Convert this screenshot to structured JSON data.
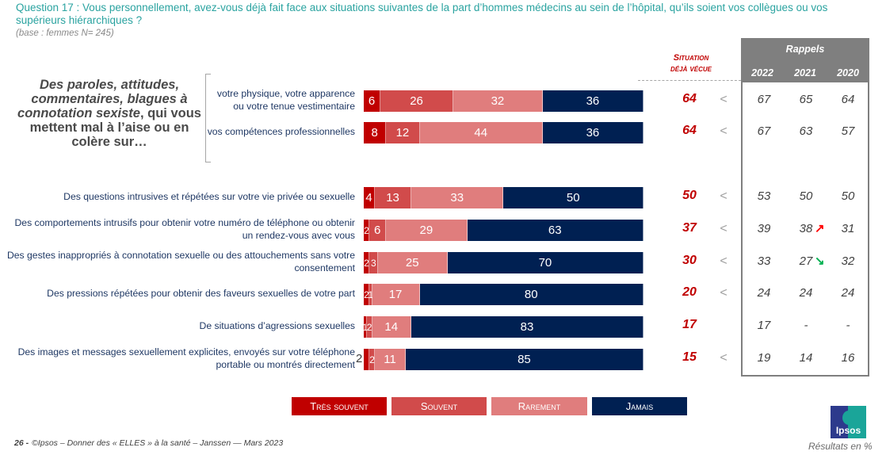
{
  "header": {
    "question": "Question 17 : Vous personnellement, avez-vous déjà fait face aux situations suivantes de la part d’hommes médecins au sein de l’hôpital, qu’ils soient vos collègues ou vos supérieurs hiérarchiques ?",
    "base": "(base : femmes N= 245)"
  },
  "group": {
    "title_italic": "Des paroles, attitudes, commentaires, blagues à connotation sexiste",
    "title_rest": ", qui vous mettent mal à l’aise ou en colère sur…"
  },
  "columns": {
    "situation_header_1": "Situation",
    "situation_header_2": "déjà vécue",
    "rappels_title": "Rappels",
    "years": [
      "2022",
      "2021",
      "2020"
    ]
  },
  "colors": {
    "tres_souvent": "#c00000",
    "souvent": "#d14b4b",
    "rarement": "#e07d7d",
    "jamais": "#002052",
    "situation": "#c00000",
    "rappels_header": "#7f7f7f",
    "question": "#2aa3a0",
    "arrow_up": "#ff0000",
    "arrow_down": "#00b050"
  },
  "chart_data": {
    "type": "bar",
    "orientation": "horizontal-stacked-100",
    "title": "Question 17 : Vous personnellement, avez-vous déjà fait face aux situations suivantes de la part d’hommes médecins au sein de l’hôpital, qu’ils soient vos collègues ou vos supérieurs hiérarchiques ?",
    "unit": "%",
    "legend": [
      "Très souvent",
      "Souvent",
      "Rarement",
      "Jamais"
    ],
    "legend_position": "bottom",
    "categories": [
      "votre physique, votre apparence ou votre tenue vestimentaire",
      "vos compétences professionnelles",
      "Des questions intrusives et répétées sur votre vie privée ou sexuelle",
      "Des comportements intrusifs pour obtenir votre numéro de téléphone ou obtenir un rendez-vous avec vous",
      "Des gestes inappropriés à connotation sexuelle ou des attouchements sans votre consentement",
      "Des pressions répétées pour obtenir des faveurs sexuelles de votre part",
      "De situations d’agressions sexuelles",
      "Des images et messages sexuellement explicites, envoyés sur votre téléphone portable ou montrés directement"
    ],
    "series": [
      {
        "name": "Très souvent",
        "values": [
          6,
          8,
          4,
          2,
          2,
          2,
          1,
          2
        ]
      },
      {
        "name": "Souvent",
        "values": [
          26,
          12,
          13,
          6,
          3,
          1,
          2,
          2
        ]
      },
      {
        "name": "Rarement",
        "values": [
          32,
          44,
          33,
          29,
          25,
          17,
          14,
          11
        ]
      },
      {
        "name": "Jamais",
        "values": [
          36,
          36,
          50,
          63,
          70,
          80,
          83,
          85
        ]
      }
    ],
    "situation_deja_vecue": [
      64,
      64,
      50,
      37,
      30,
      20,
      17,
      15
    ],
    "comparison_sign": [
      "<",
      "<",
      "<",
      "<",
      "<",
      "<",
      "",
      "<"
    ],
    "rappels": {
      "2022": [
        "67",
        "67",
        "53",
        "39",
        "33",
        "24",
        "17",
        "19"
      ],
      "2021": [
        "65",
        "63",
        "50",
        "38",
        "27",
        "24",
        "-",
        "14"
      ],
      "2020": [
        "64",
        "57",
        "50",
        "31",
        "32",
        "24",
        "-",
        "16"
      ]
    },
    "rappels_trend_2021": [
      "",
      "",
      "",
      "up",
      "down",
      "",
      "",
      ""
    ]
  },
  "rows": [
    {
      "label": "votre physique, votre apparence\nou votre tenue vestimentaire",
      "seg": [
        "6",
        "26",
        "32",
        "36"
      ],
      "sit": "64",
      "lt": "<",
      "r22": "67",
      "r21": "65",
      "r20": "64"
    },
    {
      "label": "vos compétences professionnelles",
      "seg": [
        "8",
        "12",
        "44",
        "36"
      ],
      "sit": "64",
      "lt": "<",
      "r22": "67",
      "r21": "63",
      "r20": "57"
    },
    {
      "label": "Des questions intrusives et répétées sur votre vie privée ou sexuelle",
      "seg": [
        "4",
        "13",
        "33",
        "50"
      ],
      "sit": "50",
      "lt": "<",
      "r22": "53",
      "r21": "50",
      "r20": "50"
    },
    {
      "label": "Des comportements intrusifs pour obtenir votre numéro de téléphone ou obtenir\nun rendez-vous avec vous",
      "seg": [
        "2",
        "6",
        "29",
        "63"
      ],
      "sit": "37",
      "lt": "<",
      "r22": "39",
      "r21": "38",
      "r20": "31",
      "arrow": "↗"
    },
    {
      "label": "Des gestes inappropriés à connotation sexuelle ou des attouchements sans votre\nconsentement",
      "seg": [
        "2",
        "3",
        "25",
        "70"
      ],
      "sit": "30",
      "lt": "<",
      "r22": "33",
      "r21": "27",
      "r20": "32",
      "arrow": "↘"
    },
    {
      "label": "Des pressions répétées pour obtenir des faveurs sexuelles de votre part",
      "seg": [
        "2",
        "1",
        "17",
        "80"
      ],
      "sit": "20",
      "lt": "<",
      "r22": "24",
      "r21": "24",
      "r20": "24"
    },
    {
      "label": "De situations d’agressions sexuelles",
      "seg": [
        "1",
        "2",
        "14",
        "83"
      ],
      "sit": "17",
      "lt": "",
      "r22": "17",
      "r21": "-",
      "r20": "-"
    },
    {
      "label": "Des images et messages sexuellement explicites, envoyés sur votre téléphone\nportable ou montrés directement",
      "seg": [
        "",
        "2",
        "11",
        "85"
      ],
      "outside": "2",
      "sit": "15",
      "lt": "<",
      "r22": "19",
      "r21": "14",
      "r20": "16"
    }
  ],
  "legend": {
    "tres_souvent": "Très souvent",
    "souvent": "Souvent",
    "rarement": "Rarement",
    "jamais": "Jamais"
  },
  "footer": {
    "page": "26 -",
    "text": "©Ipsos – Donner des « ELLES » à la santé – Janssen — Mars 2023",
    "results": "Résultats en %",
    "logo": "Ipsos"
  }
}
